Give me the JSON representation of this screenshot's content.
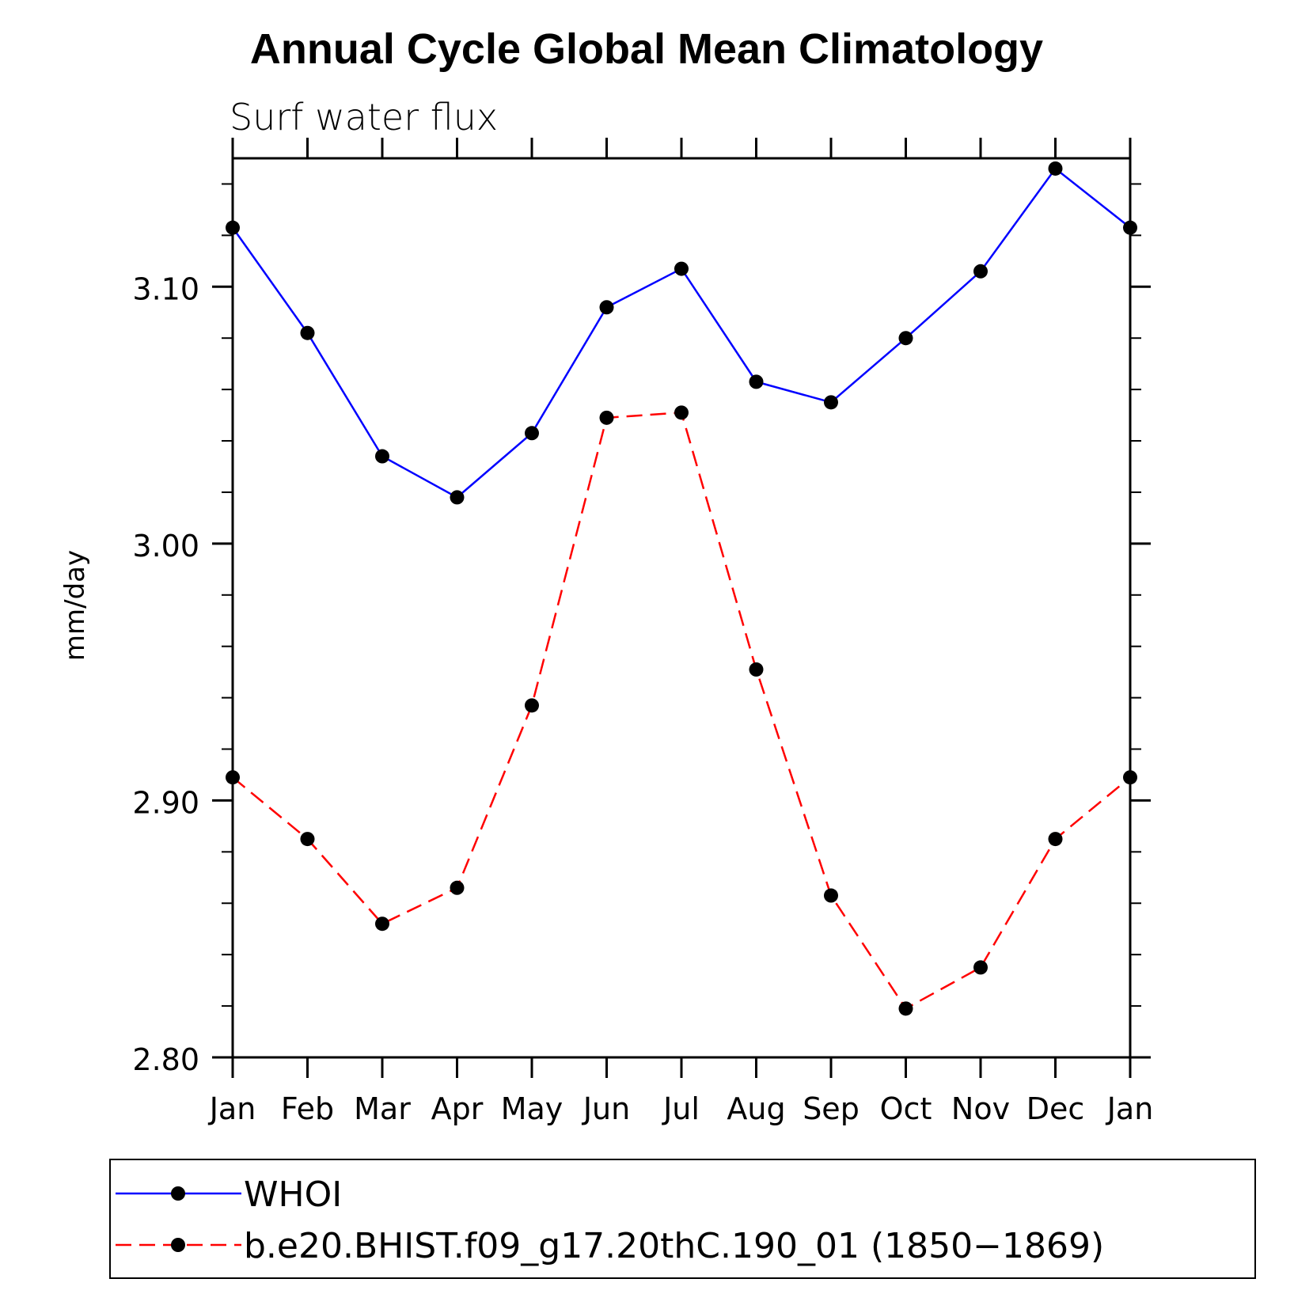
{
  "chart_data": {
    "type": "line",
    "title": "Annual Cycle Global Mean Climatology",
    "subtitle": "Surf water flux",
    "xlabel": "",
    "ylabel": "mm/day",
    "categories": [
      "Jan",
      "Feb",
      "Mar",
      "Apr",
      "May",
      "Jun",
      "Jul",
      "Aug",
      "Sep",
      "Oct",
      "Nov",
      "Dec",
      "Jan"
    ],
    "ylim": [
      2.8,
      3.15
    ],
    "yticks": [
      "2.80",
      "2.90",
      "3.00",
      "3.10"
    ],
    "series": [
      {
        "name": "WHOI",
        "color": "#0000ff",
        "style": "solid",
        "values": [
          3.123,
          3.082,
          3.034,
          3.018,
          3.043,
          3.092,
          3.107,
          3.063,
          3.055,
          3.08,
          3.106,
          3.146,
          3.123
        ]
      },
      {
        "name": "b.e20.BHIST.f09_g17.20thC.190_01 (1850−1869)",
        "color": "#ff0000",
        "style": "dashed",
        "values": [
          2.909,
          2.885,
          2.852,
          2.866,
          2.937,
          3.049,
          3.051,
          2.951,
          2.863,
          2.819,
          2.835,
          2.885,
          2.909
        ]
      }
    ],
    "legend_position": "bottom"
  }
}
